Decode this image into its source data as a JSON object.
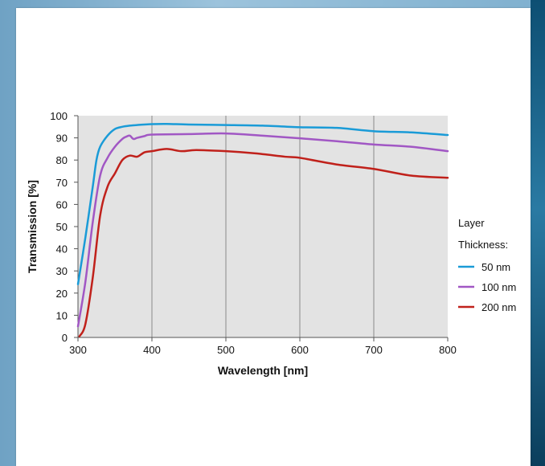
{
  "chart_data": {
    "type": "line",
    "title": "",
    "xlabel": "Wavelength [nm]",
    "ylabel": "Transmission [%]",
    "xlim": [
      300,
      800
    ],
    "ylim": [
      0,
      100
    ],
    "x_ticks": [
      300,
      400,
      500,
      600,
      700,
      800
    ],
    "y_ticks": [
      0,
      10,
      20,
      30,
      40,
      50,
      60,
      70,
      80,
      90,
      100
    ],
    "grid": true,
    "legend": {
      "title_line1": "Layer",
      "title_line2": "Thickness:",
      "position": "right"
    },
    "series": [
      {
        "name": "50 nm",
        "color": "#1a9bd7",
        "x": [
          300,
          310,
          320,
          325,
          330,
          340,
          350,
          360,
          370,
          380,
          400,
          420,
          450,
          500,
          550,
          600,
          650,
          700,
          750,
          800
        ],
        "y": [
          24,
          45,
          68,
          80,
          86,
          91,
          94,
          95,
          95.5,
          95.8,
          96.2,
          96.3,
          96,
          95.8,
          95.5,
          94.8,
          94.5,
          93,
          92.5,
          91.3
        ]
      },
      {
        "name": "100 nm",
        "color": "#a157c4",
        "x": [
          300,
          310,
          320,
          330,
          340,
          350,
          360,
          365,
          370,
          375,
          380,
          390,
          400,
          450,
          500,
          550,
          600,
          650,
          700,
          750,
          800
        ],
        "y": [
          5,
          25,
          52,
          73,
          81,
          86,
          89.5,
          90.5,
          91,
          89.5,
          90,
          90.8,
          91.5,
          91.7,
          92,
          91,
          89.8,
          88.5,
          87,
          86,
          84
        ]
      },
      {
        "name": "200 nm",
        "color": "#c0211b",
        "x": [
          302,
          310,
          320,
          330,
          340,
          350,
          360,
          370,
          380,
          390,
          400,
          420,
          440,
          460,
          500,
          540,
          580,
          600,
          650,
          700,
          750,
          800
        ],
        "y": [
          0.5,
          6,
          27,
          55,
          68,
          74,
          80,
          82,
          81.5,
          83.5,
          84,
          85,
          84,
          84.5,
          84,
          83,
          81.5,
          81,
          78,
          76,
          73,
          72
        ]
      }
    ]
  }
}
